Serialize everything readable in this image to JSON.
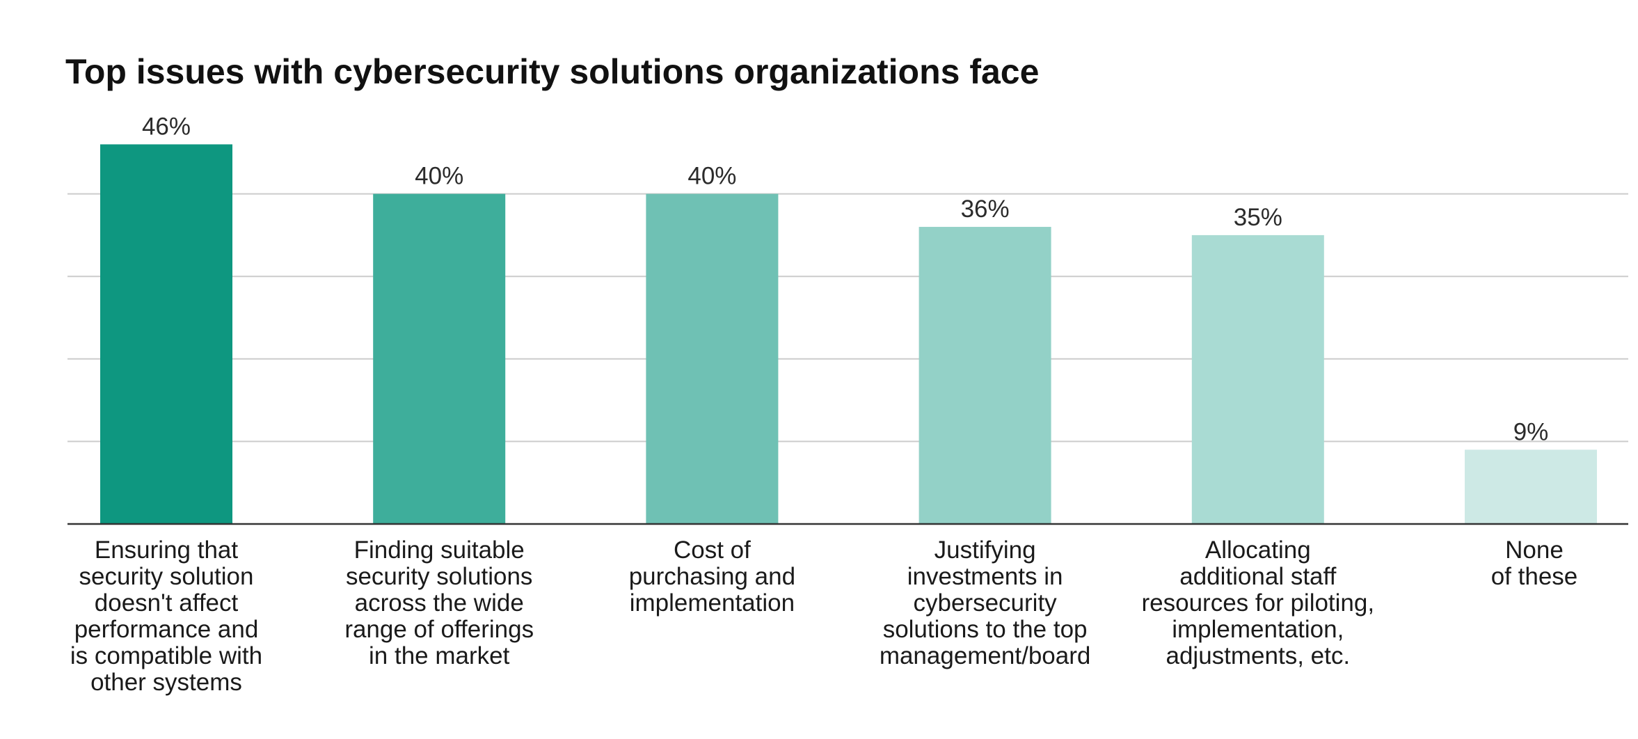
{
  "chart_data": {
    "type": "bar",
    "title": "Top issues with cybersecurity solutions organizations face",
    "categories": [
      "Ensuring that security solution doesn't affect performance and is compatible with other systems",
      "Finding suitable security solutions across the wide range of offerings in the market",
      "Cost of purchasing and implementation",
      "Justifying investments in cybersecurity solutions to the top management/board",
      "Allocating additional staff resources for piloting, implementation, adjustments, etc.",
      "None of these"
    ],
    "category_lines": [
      [
        "Ensuring that",
        "security solution",
        "doesn't affect",
        "performance and",
        "is compatible with",
        "other systems"
      ],
      [
        "Finding suitable",
        "security solutions",
        "across the wide",
        "range of offerings",
        "in the market"
      ],
      [
        "Cost of",
        "purchasing and",
        "implementation"
      ],
      [
        "Justifying",
        "investments in",
        "cybersecurity",
        "solutions to the top",
        "management/board"
      ],
      [
        "Allocating",
        "additional staff",
        "resources for piloting,",
        "implementation,",
        "adjustments, etc."
      ],
      [
        "None",
        "of these"
      ]
    ],
    "values": [
      46,
      40,
      40,
      36,
      35,
      9
    ],
    "value_labels": [
      "46%",
      "40%",
      "40%",
      "36%",
      "35%",
      "9%"
    ],
    "colors": [
      "#0e9780",
      "#3eae9b",
      "#6fc1b4",
      "#93d1c7",
      "#a9dbd3",
      "#cde9e5"
    ],
    "xlabel": "",
    "ylabel": "",
    "ylim": [
      0,
      50
    ],
    "grid": true,
    "grid_color": "#cccccc",
    "axis_color": "#333333"
  }
}
